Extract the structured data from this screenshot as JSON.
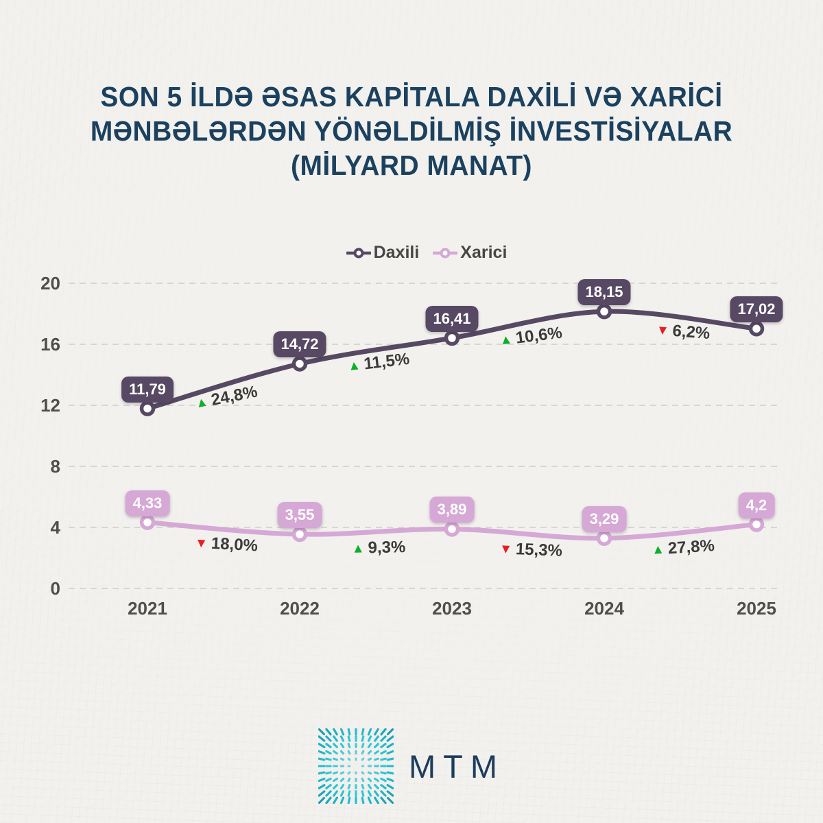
{
  "title": {
    "line1": "SON 5 İLDƏ ƏSAS KAPİTALA DAXİLİ VƏ XARİCİ",
    "line2": "MƏNBƏLƏRDƏN YÖNƏLDİLMİŞ İNVESTİSİYALAR",
    "line3": "(MİLYARD MANAT)"
  },
  "chart_data": {
    "type": "line",
    "x": [
      "2021",
      "2022",
      "2023",
      "2024",
      "2025"
    ],
    "series": [
      {
        "name": "Daxili",
        "color": "#574963",
        "values": [
          11.79,
          14.72,
          16.41,
          18.15,
          17.02
        ],
        "labels": [
          "11,79",
          "14,72",
          "16,41",
          "18,15",
          "17,02"
        ],
        "changes": [
          {
            "dir": "up",
            "label": "24,8%"
          },
          {
            "dir": "up",
            "label": "11,5%"
          },
          {
            "dir": "up",
            "label": "10,6%"
          },
          {
            "dir": "down",
            "label": "6,2%"
          }
        ]
      },
      {
        "name": "Xarici",
        "color": "#D6A8D5",
        "values": [
          4.33,
          3.55,
          3.89,
          3.29,
          4.2
        ],
        "labels": [
          "4,33",
          "3,55",
          "3,89",
          "3,29",
          "4,2"
        ],
        "changes": [
          {
            "dir": "down",
            "label": "18,0%"
          },
          {
            "dir": "up",
            "label": "9,3%"
          },
          {
            "dir": "down",
            "label": "15,3%"
          },
          {
            "dir": "up",
            "label": "27,8%"
          }
        ]
      }
    ],
    "yticks": [
      0,
      4,
      8,
      12,
      16,
      20
    ],
    "ylim": [
      0,
      20
    ],
    "xlabel": "",
    "ylabel": "",
    "grid": true,
    "legend_position": "top",
    "up_color": "#0DAF2B",
    "down_color": "#EC1C24",
    "marker_fill": "#FFFFFF"
  },
  "footer": {
    "brand": "MTM"
  }
}
